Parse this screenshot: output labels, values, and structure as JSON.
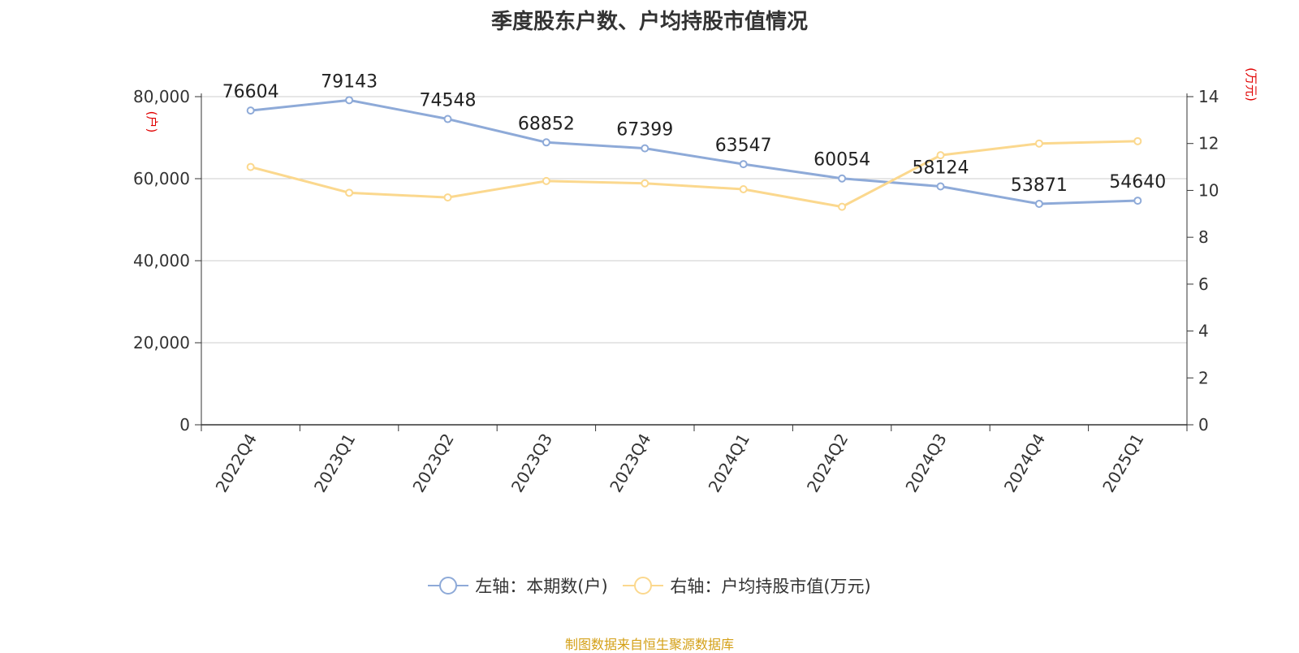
{
  "title": "季度股东户数、户均持股市值情况",
  "left_axis_unit": "(户)",
  "right_axis_unit": "(万元)",
  "legend": [
    {
      "label": "左轴：本期数(户)",
      "color": "#8eaad8"
    },
    {
      "label": "右轴：户均持股市值(万元)",
      "color": "#fbd88e"
    }
  ],
  "source": "制图数据来自恒生聚源数据库",
  "chart_data": {
    "type": "line",
    "title": "季度股东户数、户均持股市值情况",
    "categories": [
      "2022Q4",
      "2023Q1",
      "2023Q2",
      "2023Q3",
      "2023Q4",
      "2024Q1",
      "2024Q2",
      "2024Q3",
      "2024Q4",
      "2025Q1"
    ],
    "series": [
      {
        "name": "左轴：本期数(户)",
        "axis": "left",
        "color": "#8eaad8",
        "values": [
          76604,
          79143,
          74548,
          68852,
          67399,
          63547,
          60054,
          58124,
          53871,
          54640
        ],
        "data_labels": [
          "76604",
          "79143",
          "74548",
          "68852",
          "67399",
          "63547",
          "60054",
          "58124",
          "53871",
          "54640"
        ]
      },
      {
        "name": "右轴：户均持股市值(万元)",
        "axis": "right",
        "color": "#fbd88e",
        "values": [
          11.0,
          9.9,
          9.7,
          10.4,
          10.3,
          10.05,
          9.3,
          11.5,
          12.0,
          12.1
        ]
      }
    ],
    "left_axis": {
      "ylim": [
        0,
        80000
      ],
      "ticks": [
        0,
        20000,
        40000,
        60000,
        80000
      ],
      "tick_labels": [
        "0",
        "20,000",
        "40,000",
        "60,000",
        "80,000"
      ],
      "label": "(户)"
    },
    "right_axis": {
      "ylim": [
        0,
        14
      ],
      "ticks": [
        0,
        2,
        4,
        6,
        8,
        10,
        12,
        14
      ],
      "tick_labels": [
        "0",
        "2",
        "4",
        "6",
        "8",
        "10",
        "12",
        "14"
      ],
      "label": "(万元)"
    },
    "grid": true,
    "legend_position": "bottom"
  }
}
